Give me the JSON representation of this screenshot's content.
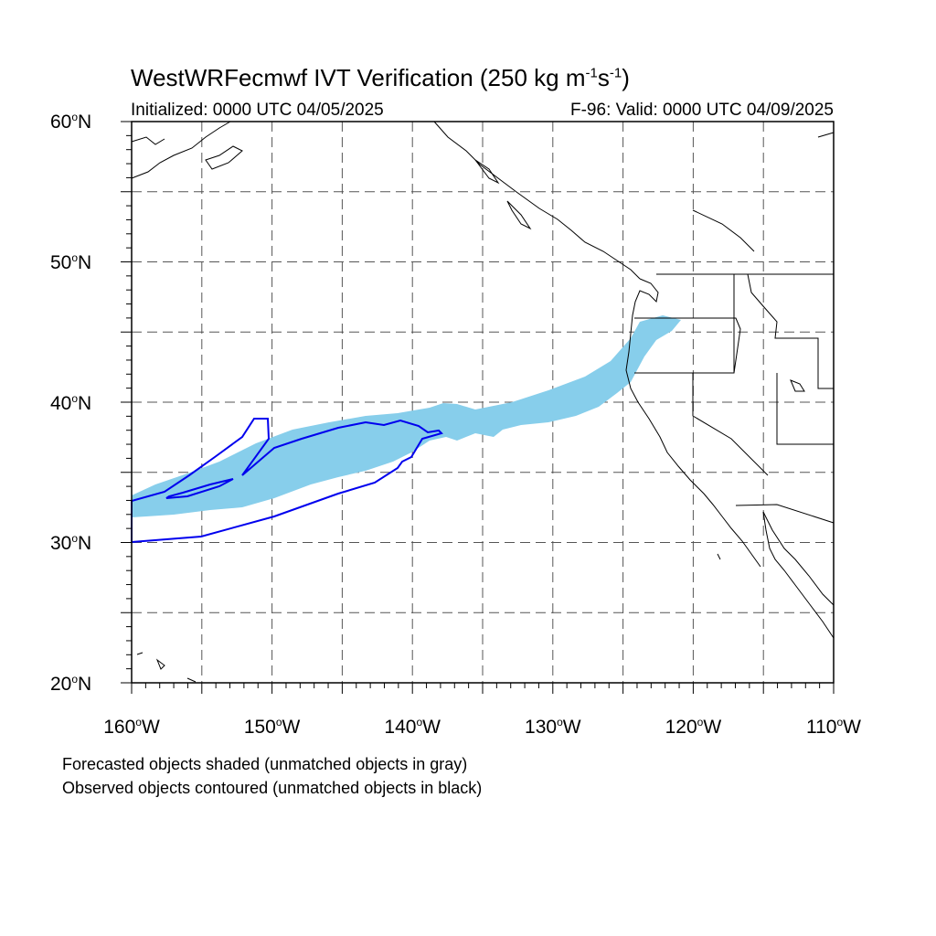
{
  "header": {
    "title_main": "WestWRFecmwf IVT Verification (250 kg m",
    "title_exp1": "-1",
    "title_mid": "s",
    "title_exp2": "-1",
    "title_end": ")",
    "initialized": "Initialized: 0000 UTC 04/05/2025",
    "valid": "F-96: Valid: 0000 UTC 04/09/2025"
  },
  "axes": {
    "lat_labels": [
      "60",
      "50",
      "40",
      "30",
      "20"
    ],
    "lat_suffix": "N",
    "lon_labels": [
      "160",
      "150",
      "140",
      "130",
      "120",
      "110"
    ],
    "lon_suffix": "W",
    "degree_symbol": "o"
  },
  "map_extent": {
    "lon_min": -160,
    "lon_max": -110,
    "lat_min": 20,
    "lat_max": 60,
    "gridlines_every_deg": 5
  },
  "notes": {
    "line1": "Forecasted objects shaded (unmatched objects in gray)",
    "line2": "Observed objects contoured (unmatched objects in black)"
  },
  "colors": {
    "forecast_fill": "#87ceeb",
    "observed_contour": "#0000ee",
    "coastline": "#000000",
    "grid": "#555555"
  }
}
